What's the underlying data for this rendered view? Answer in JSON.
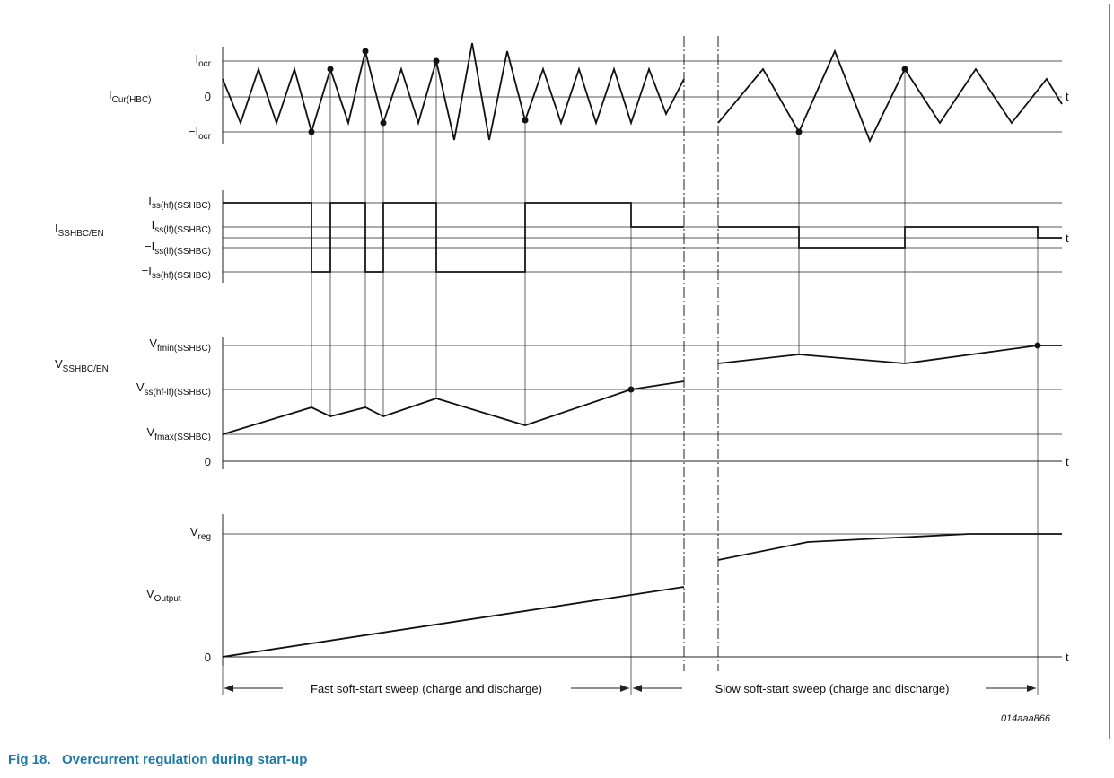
{
  "figure": {
    "caption": "Fig 18.   Overcurrent regulation during start-up",
    "code": "014aaa866",
    "colors": {
      "caption": "#1e7aa8",
      "frame": "#4b8fb5",
      "trace": "#111111"
    }
  },
  "panel1": {
    "signal": {
      "main": "I",
      "sub": "Cur(HBC)"
    },
    "levels": [
      {
        "main": "I",
        "sub": "ocr"
      },
      {
        "main": "0",
        "sub": ""
      },
      {
        "main": "−I",
        "sub": "ocr"
      }
    ],
    "axis": "t"
  },
  "panel2": {
    "signal": {
      "main": "I",
      "sub": "SSHBC/EN"
    },
    "levels": [
      {
        "main": "I",
        "sub": "ss(hf)(SSHBC)"
      },
      {
        "main": "I",
        "sub": "ss(lf)(SSHBC)"
      },
      {
        "main": "−I",
        "sub": "ss(lf)(SSHBC)"
      },
      {
        "main": "−I",
        "sub": "ss(hf)(SSHBC)"
      }
    ],
    "axis": "t"
  },
  "panel3": {
    "signal": {
      "main": "V",
      "sub": "SSHBC/EN"
    },
    "levels": [
      {
        "main": "V",
        "sub": "fmin(SSHBC)"
      },
      {
        "main": "V",
        "sub": "ss(hf-lf)(SSHBC)"
      },
      {
        "main": "V",
        "sub": "fmax(SSHBC)"
      },
      {
        "main": "0",
        "sub": ""
      }
    ],
    "axis": "t"
  },
  "panel4": {
    "signal": {
      "main": "V",
      "sub": "Output"
    },
    "levels": [
      {
        "main": "V",
        "sub": "reg"
      },
      {
        "main": "0",
        "sub": ""
      }
    ],
    "axis": "t"
  },
  "sweeps": {
    "fast": "Fast soft-start sweep (charge and discharge)",
    "slow": "Slow soft-start sweep (charge and discharge)"
  }
}
